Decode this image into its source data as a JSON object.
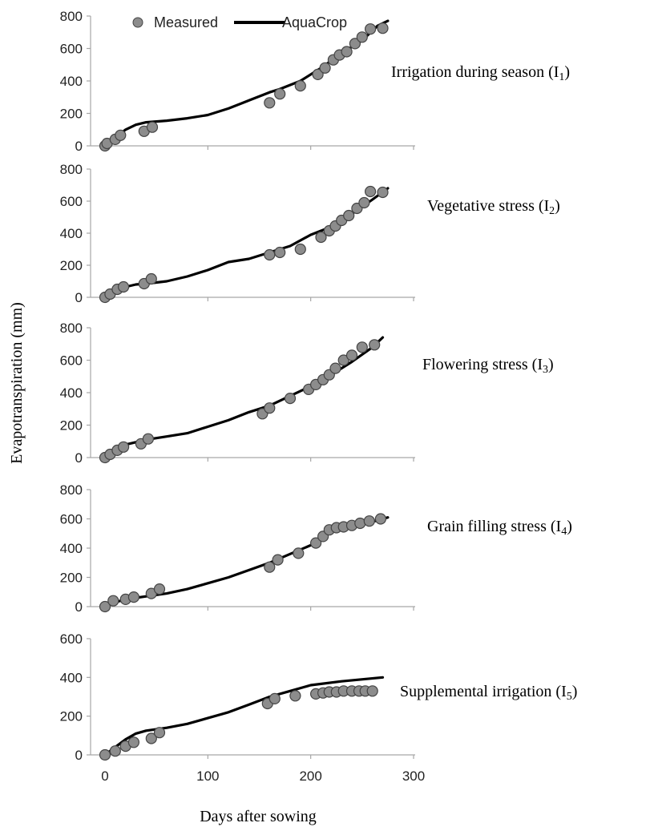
{
  "chart_data": {
    "type": "line",
    "xlabel": "Days after sowing",
    "ylabel": "Evapotranspiration (mm)",
    "legend": {
      "placement": "top",
      "measured_label": "Measured",
      "model_label": "AquaCrop"
    },
    "x_ticks": [
      "0",
      "100",
      "200",
      "300"
    ],
    "xlim": [
      0,
      300
    ],
    "colors": {
      "measured": "#8c8c8c",
      "model": "#000000",
      "axis": "#a6a6a6"
    },
    "panels": [
      {
        "label_main": "Irrigation during season (I",
        "label_sub": "1",
        "label_close": ")",
        "ylim": [
          0,
          800
        ],
        "y_ticks": [
          0,
          200,
          400,
          600,
          800
        ],
        "model": {
          "x": [
            0,
            10,
            20,
            30,
            40,
            60,
            80,
            100,
            120,
            140,
            160,
            170,
            190,
            210,
            230,
            250,
            265,
            275
          ],
          "y": [
            0,
            50,
            100,
            130,
            145,
            155,
            170,
            190,
            230,
            280,
            330,
            350,
            400,
            480,
            570,
            650,
            740,
            770
          ]
        },
        "measured": {
          "x": [
            0,
            2,
            10,
            15,
            38,
            46,
            160,
            170,
            190,
            207,
            214,
            222,
            228,
            235,
            243,
            250,
            258,
            270
          ],
          "y": [
            0,
            15,
            40,
            65,
            90,
            115,
            265,
            320,
            370,
            440,
            480,
            530,
            560,
            580,
            630,
            670,
            720,
            725
          ]
        }
      },
      {
        "label_main": "Vegetative stress (I",
        "label_sub": "2",
        "label_close": ")",
        "ylim": [
          0,
          800
        ],
        "y_ticks": [
          0,
          200,
          400,
          600,
          800
        ],
        "model": {
          "x": [
            0,
            10,
            20,
            30,
            40,
            60,
            80,
            100,
            120,
            140,
            160,
            180,
            200,
            220,
            240,
            260,
            275
          ],
          "y": [
            0,
            45,
            65,
            80,
            85,
            100,
            130,
            170,
            220,
            240,
            280,
            320,
            390,
            440,
            520,
            610,
            680
          ]
        },
        "measured": {
          "x": [
            0,
            5,
            12,
            18,
            38,
            45,
            160,
            170,
            190,
            210,
            218,
            224,
            230,
            237,
            245,
            252,
            258,
            270
          ],
          "y": [
            0,
            20,
            50,
            65,
            85,
            115,
            265,
            280,
            300,
            375,
            415,
            445,
            480,
            510,
            555,
            590,
            660,
            655
          ]
        }
      },
      {
        "label_main": "Flowering stress (I",
        "label_sub": "3",
        "label_close": ")",
        "ylim": [
          0,
          800
        ],
        "y_ticks": [
          0,
          200,
          400,
          600,
          800
        ],
        "model": {
          "x": [
            0,
            10,
            20,
            30,
            40,
            60,
            80,
            100,
            120,
            140,
            160,
            180,
            200,
            220,
            240,
            260,
            270
          ],
          "y": [
            0,
            50,
            80,
            95,
            110,
            130,
            150,
            190,
            230,
            280,
            320,
            380,
            440,
            510,
            590,
            680,
            740
          ]
        },
        "measured": {
          "x": [
            0,
            5,
            12,
            18,
            35,
            42,
            153,
            160,
            180,
            198,
            205,
            212,
            218,
            224,
            232,
            240,
            250,
            262
          ],
          "y": [
            0,
            20,
            45,
            65,
            85,
            115,
            270,
            305,
            365,
            420,
            450,
            480,
            510,
            550,
            600,
            630,
            680,
            695
          ]
        }
      },
      {
        "label_main": "Grain filling stress (I",
        "label_sub": "4",
        "label_close": ")",
        "ylim": [
          0,
          800
        ],
        "y_ticks": [
          0,
          200,
          400,
          600,
          800
        ],
        "model": {
          "x": [
            0,
            10,
            20,
            30,
            40,
            60,
            80,
            100,
            120,
            140,
            160,
            180,
            200,
            210,
            220,
            240,
            260,
            275
          ],
          "y": [
            0,
            30,
            50,
            60,
            70,
            90,
            120,
            160,
            200,
            250,
            300,
            360,
            420,
            470,
            510,
            550,
            580,
            610
          ]
        },
        "measured": {
          "x": [
            0,
            8,
            20,
            28,
            45,
            53,
            160,
            168,
            188,
            205,
            212,
            218,
            225,
            232,
            240,
            248,
            257,
            268
          ],
          "y": [
            0,
            40,
            50,
            65,
            90,
            120,
            270,
            320,
            365,
            435,
            480,
            525,
            540,
            545,
            555,
            570,
            585,
            600
          ]
        }
      },
      {
        "label_main": "Supplemental irrigation (I",
        "label_sub": "5",
        "label_close": ")",
        "ylim": [
          0,
          600
        ],
        "y_ticks": [
          0,
          200,
          400,
          600
        ],
        "model": {
          "x": [
            0,
            10,
            20,
            30,
            40,
            60,
            80,
            100,
            120,
            140,
            160,
            180,
            200,
            230,
            270
          ],
          "y": [
            0,
            40,
            80,
            110,
            125,
            140,
            160,
            190,
            220,
            260,
            300,
            330,
            360,
            380,
            400
          ]
        },
        "measured": {
          "x": [
            0,
            10,
            20,
            28,
            45,
            53,
            158,
            165,
            185,
            205,
            212,
            218,
            225,
            232,
            240,
            247,
            253,
            260
          ],
          "y": [
            0,
            20,
            45,
            65,
            85,
            115,
            265,
            290,
            305,
            315,
            320,
            325,
            325,
            330,
            330,
            330,
            330,
            330
          ]
        }
      }
    ]
  }
}
